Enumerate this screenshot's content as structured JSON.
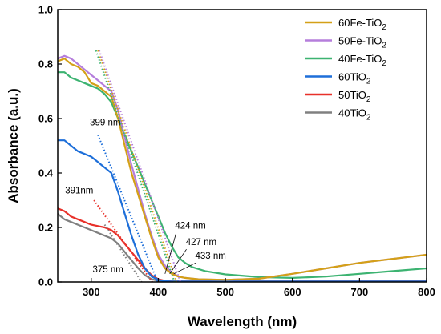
{
  "chart_data": {
    "type": "line",
    "xlabel": "Wavelength (nm)",
    "ylabel": "Absorbance (a.u.)",
    "xlim": [
      250,
      800
    ],
    "ylim": [
      0,
      1.0
    ],
    "xticks": [
      300,
      400,
      500,
      600,
      700,
      800
    ],
    "yticks": [
      0.0,
      0.2,
      0.4,
      0.6,
      0.8,
      1.0
    ],
    "legend_position": "top-right",
    "series": [
      {
        "name": "60Fe-TiO",
        "subscript": "2",
        "color": "#D4A017",
        "points": [
          [
            250,
            0.81
          ],
          [
            260,
            0.82
          ],
          [
            270,
            0.8
          ],
          [
            280,
            0.79
          ],
          [
            290,
            0.77
          ],
          [
            300,
            0.73
          ],
          [
            310,
            0.72
          ],
          [
            320,
            0.7
          ],
          [
            330,
            0.68
          ],
          [
            340,
            0.6
          ],
          [
            350,
            0.5
          ],
          [
            360,
            0.4
          ],
          [
            370,
            0.32
          ],
          [
            380,
            0.24
          ],
          [
            390,
            0.16
          ],
          [
            400,
            0.09
          ],
          [
            410,
            0.05
          ],
          [
            420,
            0.03
          ],
          [
            430,
            0.02
          ],
          [
            440,
            0.015
          ],
          [
            460,
            0.01
          ],
          [
            500,
            0.008
          ],
          [
            550,
            0.012
          ],
          [
            600,
            0.03
          ],
          [
            650,
            0.05
          ],
          [
            700,
            0.07
          ],
          [
            750,
            0.085
          ],
          [
            800,
            0.1
          ]
        ]
      },
      {
        "name": "50Fe-TiO",
        "subscript": "2",
        "color": "#B57EDC",
        "points": [
          [
            250,
            0.82
          ],
          [
            260,
            0.83
          ],
          [
            270,
            0.82
          ],
          [
            280,
            0.8
          ],
          [
            290,
            0.78
          ],
          [
            300,
            0.76
          ],
          [
            310,
            0.74
          ],
          [
            320,
            0.72
          ],
          [
            330,
            0.7
          ],
          [
            340,
            0.63
          ],
          [
            350,
            0.53
          ],
          [
            360,
            0.43
          ],
          [
            370,
            0.34
          ],
          [
            380,
            0.25
          ],
          [
            390,
            0.17
          ],
          [
            400,
            0.1
          ],
          [
            410,
            0.06
          ],
          [
            420,
            0.035
          ],
          [
            430,
            0.02
          ],
          [
            440,
            0.015
          ],
          [
            460,
            0.01
          ],
          [
            500,
            0.008
          ],
          [
            550,
            0.012
          ],
          [
            600,
            0.03
          ],
          [
            650,
            0.05
          ],
          [
            700,
            0.07
          ],
          [
            750,
            0.085
          ],
          [
            800,
            0.1
          ]
        ]
      },
      {
        "name": "40Fe-TiO",
        "subscript": "2",
        "color": "#3CB371",
        "points": [
          [
            250,
            0.77
          ],
          [
            260,
            0.77
          ],
          [
            270,
            0.75
          ],
          [
            280,
            0.74
          ],
          [
            290,
            0.73
          ],
          [
            300,
            0.72
          ],
          [
            310,
            0.71
          ],
          [
            320,
            0.69
          ],
          [
            330,
            0.66
          ],
          [
            340,
            0.6
          ],
          [
            350,
            0.54
          ],
          [
            360,
            0.48
          ],
          [
            370,
            0.42
          ],
          [
            380,
            0.36
          ],
          [
            390,
            0.3
          ],
          [
            400,
            0.24
          ],
          [
            410,
            0.18
          ],
          [
            420,
            0.13
          ],
          [
            430,
            0.09
          ],
          [
            440,
            0.07
          ],
          [
            450,
            0.055
          ],
          [
            470,
            0.04
          ],
          [
            500,
            0.028
          ],
          [
            550,
            0.018
          ],
          [
            600,
            0.015
          ],
          [
            650,
            0.02
          ],
          [
            700,
            0.03
          ],
          [
            750,
            0.04
          ],
          [
            800,
            0.05
          ]
        ]
      },
      {
        "name": "60TiO",
        "subscript": "2",
        "color": "#1E6FD9",
        "points": [
          [
            250,
            0.52
          ],
          [
            260,
            0.52
          ],
          [
            270,
            0.5
          ],
          [
            280,
            0.48
          ],
          [
            290,
            0.47
          ],
          [
            300,
            0.46
          ],
          [
            310,
            0.44
          ],
          [
            320,
            0.42
          ],
          [
            330,
            0.4
          ],
          [
            340,
            0.33
          ],
          [
            350,
            0.25
          ],
          [
            360,
            0.17
          ],
          [
            370,
            0.1
          ],
          [
            380,
            0.05
          ],
          [
            390,
            0.02
          ],
          [
            400,
            0.008
          ],
          [
            410,
            0.003
          ],
          [
            420,
            0.002
          ],
          [
            500,
            0.002
          ],
          [
            600,
            0.002
          ],
          [
            700,
            0.002
          ],
          [
            800,
            0.002
          ]
        ]
      },
      {
        "name": "50TiO",
        "subscript": "2",
        "color": "#E8312A",
        "points": [
          [
            250,
            0.27
          ],
          [
            260,
            0.26
          ],
          [
            270,
            0.24
          ],
          [
            280,
            0.23
          ],
          [
            290,
            0.22
          ],
          [
            300,
            0.21
          ],
          [
            310,
            0.205
          ],
          [
            320,
            0.2
          ],
          [
            330,
            0.19
          ],
          [
            340,
            0.17
          ],
          [
            350,
            0.14
          ],
          [
            360,
            0.11
          ],
          [
            370,
            0.08
          ],
          [
            380,
            0.05
          ],
          [
            390,
            0.025
          ],
          [
            400,
            0.01
          ],
          [
            410,
            0.004
          ],
          [
            420,
            0.002
          ],
          [
            500,
            0.002
          ],
          [
            600,
            0.002
          ],
          [
            700,
            0.002
          ],
          [
            800,
            0.002
          ]
        ]
      },
      {
        "name": "40TiO",
        "subscript": "2",
        "color": "#808080",
        "points": [
          [
            250,
            0.25
          ],
          [
            260,
            0.23
          ],
          [
            270,
            0.22
          ],
          [
            280,
            0.21
          ],
          [
            290,
            0.2
          ],
          [
            300,
            0.19
          ],
          [
            310,
            0.18
          ],
          [
            320,
            0.17
          ],
          [
            330,
            0.16
          ],
          [
            340,
            0.14
          ],
          [
            350,
            0.11
          ],
          [
            360,
            0.08
          ],
          [
            370,
            0.05
          ],
          [
            380,
            0.025
          ],
          [
            390,
            0.01
          ],
          [
            400,
            0.004
          ],
          [
            410,
            0.002
          ],
          [
            500,
            0.002
          ],
          [
            600,
            0.002
          ],
          [
            700,
            0.002
          ],
          [
            800,
            0.002
          ]
        ]
      }
    ],
    "tangents": [
      {
        "color": "#D4A017",
        "from": [
          310,
          0.85
        ],
        "to": [
          427,
          0.0
        ]
      },
      {
        "color": "#B57EDC",
        "from": [
          312,
          0.85
        ],
        "to": [
          433,
          0.0
        ]
      },
      {
        "color": "#3CB371",
        "from": [
          307,
          0.85
        ],
        "to": [
          424,
          0.0
        ]
      },
      {
        "color": "#1E6FD9",
        "from": [
          310,
          0.54
        ],
        "to": [
          399,
          0.0
        ]
      },
      {
        "color": "#E8312A",
        "from": [
          304,
          0.3
        ],
        "to": [
          391,
          0.0
        ]
      },
      {
        "color": "#808080",
        "from": [
          320,
          0.21
        ],
        "to": [
          375,
          0.0
        ]
      }
    ],
    "annotations": [
      {
        "text": "399 nm",
        "x": 298,
        "y": 0.575
      },
      {
        "text": "391nm",
        "x": 261,
        "y": 0.325
      },
      {
        "text": "424 nm",
        "x": 425,
        "y": 0.195
      },
      {
        "text": "427 nm",
        "x": 441,
        "y": 0.135
      },
      {
        "text": "433 nm",
        "x": 455,
        "y": 0.085
      },
      {
        "text": "375 nm",
        "x": 302,
        "y": 0.035
      }
    ],
    "annotation_arrows": [
      {
        "from": [
          426,
          0.175
        ],
        "to": [
          410,
          0.03
        ]
      },
      {
        "from": [
          442,
          0.12
        ],
        "to": [
          417,
          0.03
        ]
      },
      {
        "from": [
          456,
          0.07
        ],
        "to": [
          423,
          0.03
        ]
      }
    ]
  }
}
